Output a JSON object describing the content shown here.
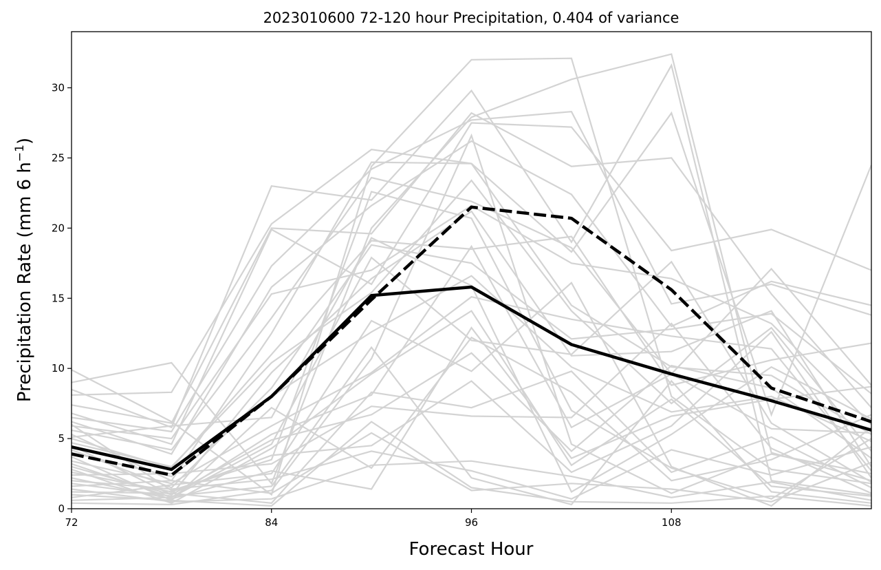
{
  "chart_data": {
    "type": "line",
    "title": "2023010600 72-120 hour Precipitation, 0.404 of variance",
    "xlabel": "Forecast Hour",
    "ylabel_prefix": "Precipitation Rate (mm 6 h",
    "ylabel_exp": "−1",
    "ylabel_suffix": ")",
    "xlim": [
      72,
      120
    ],
    "ylim": [
      0,
      34
    ],
    "xticks": [
      72,
      84,
      96,
      108
    ],
    "yticks": [
      0,
      5,
      10,
      15,
      20,
      25,
      30
    ],
    "grid": false,
    "x": [
      72,
      78,
      84,
      90,
      96,
      102,
      108,
      114,
      120
    ],
    "ensemble_color": "#d3d3d3",
    "ensemble": [
      [
        9.9,
        6.2,
        1.0,
        24.4,
        32.0,
        32.1,
        8.0,
        2.8,
        1.8
      ],
      [
        9.0,
        10.4,
        1.8,
        20.0,
        27.9,
        30.6,
        32.4,
        4.0,
        2.0
      ],
      [
        8.5,
        5.8,
        23.0,
        22.0,
        29.8,
        19.0,
        31.6,
        2.0,
        1.0
      ],
      [
        8.1,
        8.3,
        20.3,
        25.6,
        24.6,
        18.3,
        28.2,
        6.7,
        24.5
      ],
      [
        7.4,
        6.1,
        20.0,
        19.6,
        28.2,
        24.4,
        25.0,
        15.3,
        7.2
      ],
      [
        6.8,
        4.6,
        19.9,
        16.0,
        27.5,
        27.2,
        18.4,
        19.9,
        17.0
      ],
      [
        6.5,
        5.5,
        17.3,
        24.2,
        27.7,
        28.3,
        14.6,
        16.0,
        13.8
      ],
      [
        6.2,
        3.9,
        15.8,
        21.6,
        26.2,
        22.4,
        13.0,
        16.2,
        14.5
      ],
      [
        5.9,
        5.0,
        15.3,
        17.0,
        21.6,
        17.5,
        16.4,
        13.2,
        6.0
      ],
      [
        5.6,
        4.2,
        13.6,
        23.6,
        21.9,
        18.6,
        9.6,
        17.1,
        8.8
      ],
      [
        5.3,
        2.0,
        12.5,
        24.7,
        24.6,
        14.5,
        10.1,
        9.5,
        5.3
      ],
      [
        5.0,
        2.9,
        11.0,
        19.1,
        18.5,
        19.4,
        8.8,
        10.6,
        11.8
      ],
      [
        4.7,
        3.0,
        10.4,
        15.4,
        23.4,
        14.1,
        7.5,
        12.9,
        4.1
      ],
      [
        4.5,
        1.0,
        9.7,
        16.4,
        21.2,
        10.9,
        11.2,
        14.1,
        3.0
      ],
      [
        4.2,
        1.5,
        8.6,
        18.8,
        17.5,
        12.1,
        12.8,
        13.9,
        8.2
      ],
      [
        4.0,
        2.3,
        8.0,
        12.6,
        16.6,
        10.1,
        6.9,
        8.0,
        4.8
      ],
      [
        3.7,
        0.6,
        7.2,
        2.9,
        12.2,
        8.3,
        2.0,
        3.5,
        6.7
      ],
      [
        3.4,
        1.8,
        5.9,
        9.7,
        15.1,
        13.5,
        12.3,
        11.4,
        2.7
      ],
      [
        3.2,
        0.8,
        5.3,
        8.1,
        18.7,
        5.8,
        9.6,
        5.7,
        5.4
      ],
      [
        3.0,
        1.0,
        4.9,
        6.7,
        11.1,
        4.1,
        10.2,
        8.6,
        3.6
      ],
      [
        2.8,
        0.4,
        4.3,
        9.6,
        14.1,
        3.1,
        7.8,
        1.6,
        0.9
      ],
      [
        2.6,
        1.2,
        3.8,
        4.5,
        9.1,
        2.6,
        5.9,
        12.6,
        2.2
      ],
      [
        2.4,
        2.5,
        3.2,
        7.3,
        6.6,
        6.5,
        13.2,
        4.3,
        1.1
      ],
      [
        2.2,
        0.7,
        2.7,
        1.4,
        12.9,
        3.6,
        6.6,
        7.8,
        8.7
      ],
      [
        2.0,
        1.4,
        2.1,
        4.1,
        2.7,
        0.7,
        4.2,
        2.4,
        4.4
      ],
      [
        1.8,
        0.9,
        1.6,
        11.5,
        2.2,
        0.3,
        9.1,
        1.2,
        0.4
      ],
      [
        1.6,
        2.0,
        1.1,
        5.4,
        1.3,
        1.8,
        1.4,
        0.5,
        3.3
      ],
      [
        1.4,
        0.5,
        0.7,
        3.1,
        3.4,
        2.3,
        0.8,
        1.9,
        0.6
      ],
      [
        1.2,
        1.1,
        0.4,
        8.3,
        7.2,
        9.8,
        2.6,
        5.1,
        1.5
      ],
      [
        1.0,
        0.6,
        0.2,
        6.2,
        1.5,
        0.5,
        0.4,
        0.9,
        0.2
      ],
      [
        0.8,
        1.7,
        2.5,
        13.4,
        9.8,
        16.1,
        3.0,
        0.2,
        5.8
      ],
      [
        0.6,
        0.8,
        4.6,
        17.9,
        12.0,
        11.0,
        17.6,
        6.1,
        1.9
      ],
      [
        0.4,
        0.3,
        1.3,
        10.7,
        26.6,
        4.6,
        1.1,
        3.9,
        2.5
      ],
      [
        5.1,
        5.9,
        6.5,
        19.3,
        15.9,
        1.2,
        5.3,
        10.1,
        6.4
      ],
      [
        6.0,
        1.3,
        3.5,
        22.6,
        20.7,
        7.0,
        2.9,
        0.7,
        5.0
      ]
    ],
    "series": [
      {
        "values": [
          4.4,
          2.8,
          8.0,
          15.2,
          15.8,
          11.7,
          9.6,
          7.7,
          5.6
        ],
        "style": "solid",
        "color": "#000000"
      },
      {
        "values": [
          3.9,
          2.4,
          8.0,
          14.9,
          21.5,
          20.7,
          15.6,
          8.6,
          6.2
        ],
        "style": "dashed",
        "color": "#000000"
      }
    ]
  }
}
